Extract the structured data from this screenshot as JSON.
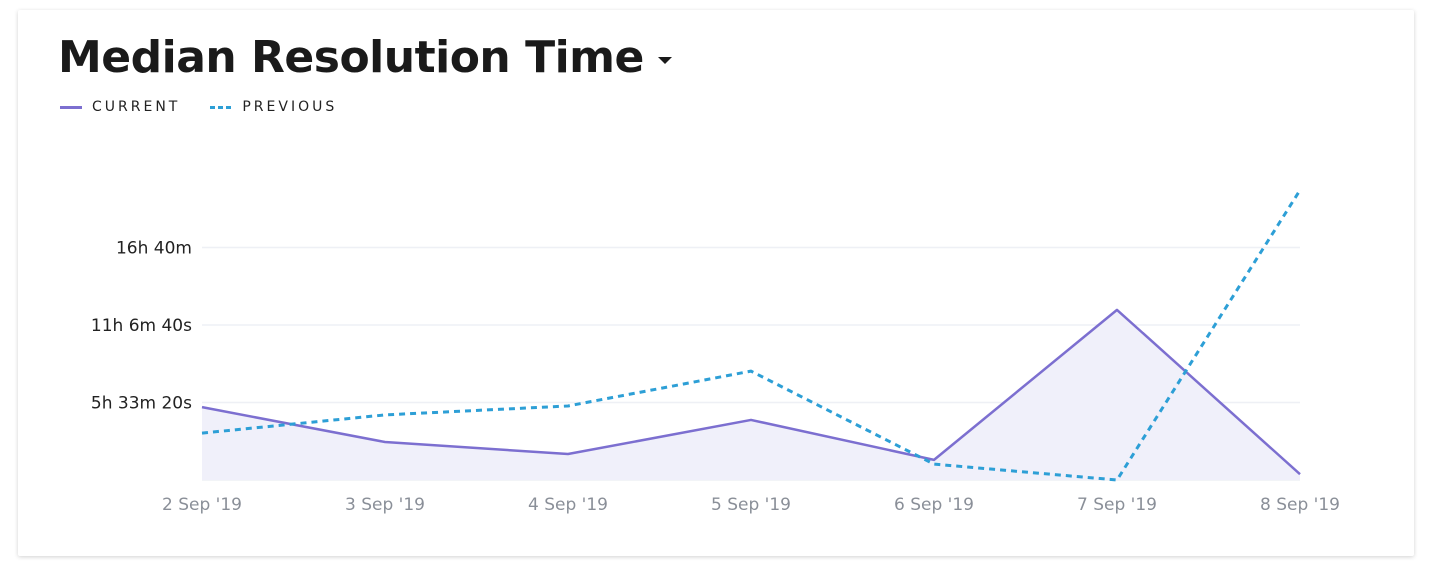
{
  "header": {
    "title": "Median Resolution Time",
    "dropdown_icon": "caret-down-icon"
  },
  "legend": [
    {
      "label": "CURRENT",
      "style": "solid"
    },
    {
      "label": "PREVIOUS",
      "style": "dotted"
    }
  ],
  "chart_data": {
    "type": "line",
    "title": "Median Resolution Time",
    "categories": [
      "2 Sep '19",
      "3 Sep '19",
      "4 Sep '19",
      "5 Sep '19",
      "6 Sep '19",
      "7 Sep '19",
      "8 Sep '19"
    ],
    "y_unit": "seconds",
    "y_ticks": [
      {
        "value": 20000,
        "label": "5h 33m 20s"
      },
      {
        "value": 40000,
        "label": "11h 6m 40s"
      },
      {
        "value": 60000,
        "label": "16h 40m"
      }
    ],
    "ylim": [
      0,
      75000
    ],
    "grid": true,
    "legend_position": "top-left",
    "series": [
      {
        "name": "CURRENT",
        "color": "#7c6fd0",
        "style": "solid",
        "area": true,
        "area_color": "#f0f0fa",
        "values": [
          18800,
          9800,
          6700,
          15500,
          5200,
          43900,
          1500
        ]
      },
      {
        "name": "PREVIOUS",
        "color": "#2d9fd6",
        "style": "dotted",
        "area": false,
        "values": [
          12100,
          16800,
          19100,
          28100,
          4100,
          0,
          74800
        ]
      }
    ]
  }
}
